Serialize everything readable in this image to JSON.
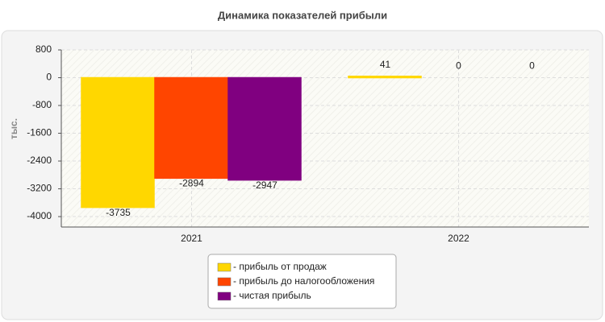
{
  "chart_data": {
    "type": "bar",
    "title": "Динамика показателей прибыли",
    "y_label": "тыс.",
    "categories": [
      "2021",
      "2022"
    ],
    "series": [
      {
        "name": "- прибыль от продаж",
        "color": "#ffd700",
        "values": [
          -3735,
          41
        ]
      },
      {
        "name": "- прибыль до налогообложения",
        "color": "#ff4500",
        "values": [
          -2894,
          0
        ]
      },
      {
        "name": "- чистая прибыль",
        "color": "#800080",
        "values": [
          -2947,
          0
        ]
      }
    ],
    "ylim": [
      -4300,
      800
    ],
    "yticks": [
      800,
      0,
      -800,
      -1600,
      -2400,
      -3200,
      -4000
    ],
    "grid": true
  }
}
